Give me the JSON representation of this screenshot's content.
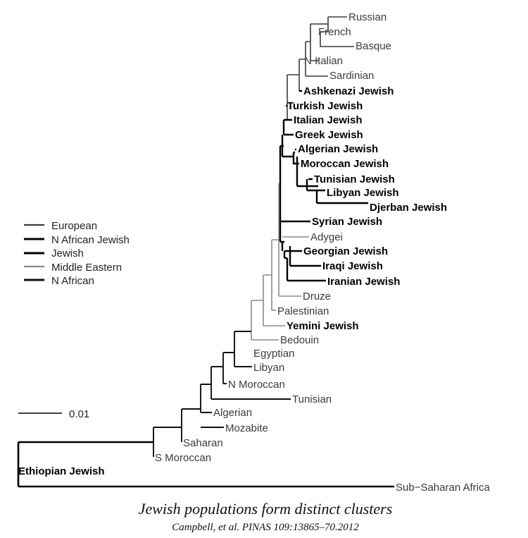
{
  "diagram": {
    "legend": [
      {
        "label": "European",
        "color": "#3c3c3c"
      },
      {
        "label": "N African Jewish",
        "color": "#000000"
      },
      {
        "label": "Jewish",
        "color": "#000000"
      },
      {
        "label": "Middle Eastern",
        "color": "#8a8a8a"
      },
      {
        "label": "N African",
        "color": "#111111"
      }
    ],
    "scale_bar_label": "0.01",
    "leaves": [
      {
        "label": "Russian",
        "jewish": false
      },
      {
        "label": "French",
        "jewish": false
      },
      {
        "label": "Basque",
        "jewish": false
      },
      {
        "label": "N Italian",
        "jewish": false
      },
      {
        "label": "Sardinian",
        "jewish": false
      },
      {
        "label": "Ashkenazi Jewish",
        "jewish": true
      },
      {
        "label": "Turkish Jewish",
        "jewish": true
      },
      {
        "label": "Italian Jewish",
        "jewish": true
      },
      {
        "label": "Greek Jewish",
        "jewish": true
      },
      {
        "label": "Algerian Jewish",
        "jewish": true
      },
      {
        "label": "Moroccan Jewish",
        "jewish": true
      },
      {
        "label": "Tunisian Jewish",
        "jewish": true
      },
      {
        "label": "Libyan Jewish",
        "jewish": true
      },
      {
        "label": "Djerban Jewish",
        "jewish": true
      },
      {
        "label": "Syrian Jewish",
        "jewish": true
      },
      {
        "label": "Adygei",
        "jewish": false
      },
      {
        "label": "Georgian Jewish",
        "jewish": true
      },
      {
        "label": "Iraqi Jewish",
        "jewish": true
      },
      {
        "label": "Iranian Jewish",
        "jewish": true
      },
      {
        "label": "Druze",
        "jewish": false
      },
      {
        "label": "Palestinian",
        "jewish": false
      },
      {
        "label": "Yemini Jewish",
        "jewish": true
      },
      {
        "label": "Bedouin",
        "jewish": false
      },
      {
        "label": "Egyptian",
        "jewish": false
      },
      {
        "label": "Libyan",
        "jewish": false
      },
      {
        "label": "N Moroccan",
        "jewish": false
      },
      {
        "label": "Tunisian",
        "jewish": false
      },
      {
        "label": "Algerian",
        "jewish": false
      },
      {
        "label": "Mozabite",
        "jewish": false
      },
      {
        "label": "Saharan",
        "jewish": false
      },
      {
        "label": "S Moroccan",
        "jewish": false
      },
      {
        "label": "Ethiopian Jewish",
        "jewish": true
      },
      {
        "label": "Sub−Saharan Africa",
        "jewish": false
      }
    ]
  },
  "caption": {
    "title": "Jewish populations form distinct clusters",
    "citation": "Campbell, et al. PINAS 109:13865–70.2012"
  }
}
